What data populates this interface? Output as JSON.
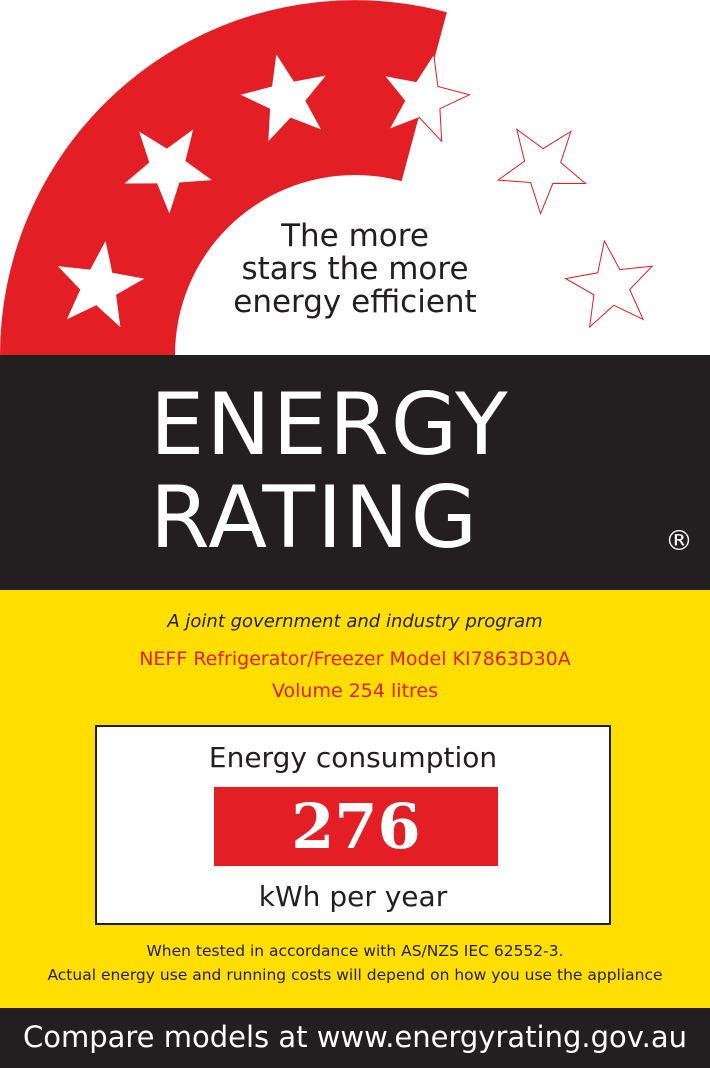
{
  "label": {
    "tagline_lines": [
      "The more",
      "stars the more",
      "energy efficient"
    ],
    "title_line1": "ENERGY",
    "title_line2": "RATING",
    "registered_mark": "®",
    "program": "A joint government and industry program",
    "model": "NEFF Refrigerator/Freezer Model KI7863D30A",
    "volume": "Volume 254 litres",
    "consumption_label": "Energy consumption",
    "consumption_value": "276",
    "consumption_unit": "kWh per year",
    "note_line1": "When tested in accordance with AS/NZS IEC 62552-3.",
    "note_line2": "Actual energy use and running costs will depend on how you use the appliance",
    "footer": "Compare models at www.energyrating.gov.au"
  },
  "star_rating": {
    "stars_filled": 3.5,
    "stars_total": 6
  },
  "colors": {
    "red": "#e31e24",
    "black": "#231f20",
    "yellow": "#ffde00",
    "white": "#ffffff"
  }
}
